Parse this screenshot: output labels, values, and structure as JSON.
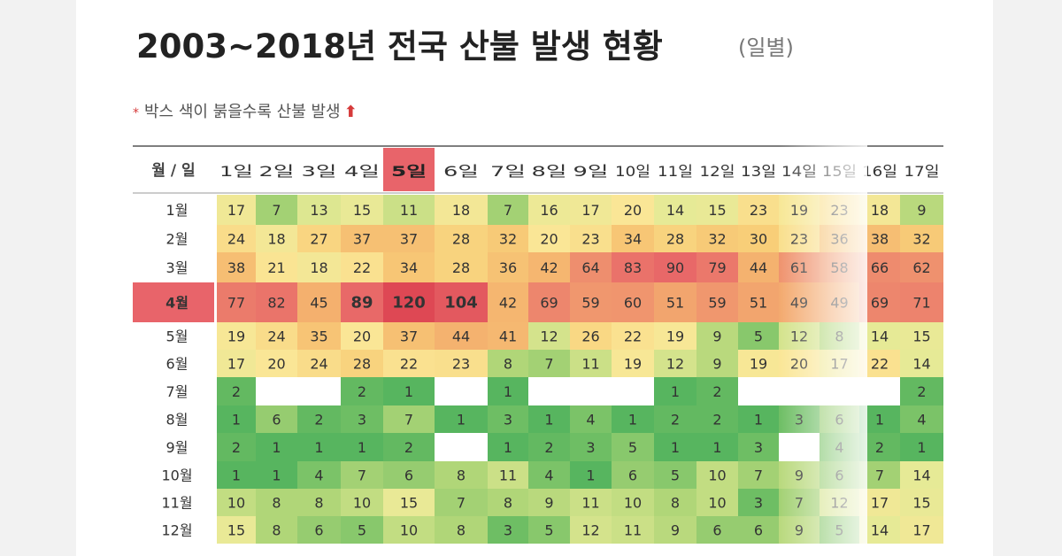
{
  "title": "2003~2018년 전국 산불 발생 현황",
  "title_suffix": "(일별)",
  "legend_note": {
    "star": "*",
    "text": "박스 색이 붉을수록 산불 발생",
    "arrow": "⬆"
  },
  "chart_data": {
    "type": "heatmap",
    "corner_label": "월 / 일",
    "highlight_color": "#e8646a",
    "x": [
      "1일",
      "2일",
      "3일",
      "4일",
      "5일",
      "6일",
      "7일",
      "8일",
      "9일",
      "10일",
      "11일",
      "12일",
      "13일",
      "14일",
      "15일",
      "16일",
      "17일"
    ],
    "y": [
      "1월",
      "2월",
      "3월",
      "4월",
      "5월",
      "6월",
      "7월",
      "8월",
      "9월",
      "10월",
      "11월",
      "12월"
    ],
    "highlight_x": "5일",
    "highlight_y": "4월",
    "values": [
      [
        17,
        7,
        13,
        15,
        11,
        18,
        7,
        16,
        17,
        20,
        14,
        15,
        23,
        19,
        23,
        18,
        9
      ],
      [
        24,
        18,
        27,
        37,
        37,
        28,
        32,
        20,
        23,
        34,
        28,
        32,
        30,
        23,
        36,
        38,
        32
      ],
      [
        38,
        21,
        18,
        22,
        34,
        28,
        36,
        42,
        64,
        83,
        90,
        79,
        44,
        61,
        58,
        66,
        62
      ],
      [
        77,
        82,
        45,
        89,
        120,
        104,
        42,
        69,
        59,
        60,
        51,
        59,
        51,
        49,
        49,
        69,
        71
      ],
      [
        19,
        24,
        35,
        20,
        37,
        44,
        41,
        12,
        26,
        22,
        19,
        9,
        5,
        12,
        8,
        14,
        15
      ],
      [
        17,
        20,
        24,
        28,
        22,
        23,
        8,
        7,
        11,
        19,
        12,
        9,
        19,
        20,
        17,
        22,
        14
      ],
      [
        2,
        null,
        null,
        2,
        1,
        null,
        1,
        null,
        null,
        null,
        1,
        2,
        null,
        null,
        null,
        null,
        2
      ],
      [
        1,
        6,
        2,
        3,
        7,
        1,
        3,
        1,
        4,
        1,
        2,
        2,
        1,
        3,
        6,
        1,
        4
      ],
      [
        2,
        1,
        1,
        1,
        2,
        null,
        1,
        2,
        3,
        5,
        1,
        1,
        3,
        null,
        4,
        2,
        1
      ],
      [
        1,
        1,
        4,
        7,
        6,
        8,
        11,
        4,
        1,
        6,
        5,
        10,
        7,
        9,
        6,
        7,
        14
      ],
      [
        10,
        8,
        8,
        10,
        15,
        7,
        8,
        9,
        11,
        10,
        8,
        10,
        3,
        7,
        12,
        17,
        15
      ],
      [
        15,
        8,
        6,
        5,
        10,
        8,
        3,
        5,
        12,
        11,
        9,
        6,
        6,
        9,
        5,
        14,
        17
      ]
    ],
    "bold_values": [
      89,
      120,
      104
    ]
  }
}
